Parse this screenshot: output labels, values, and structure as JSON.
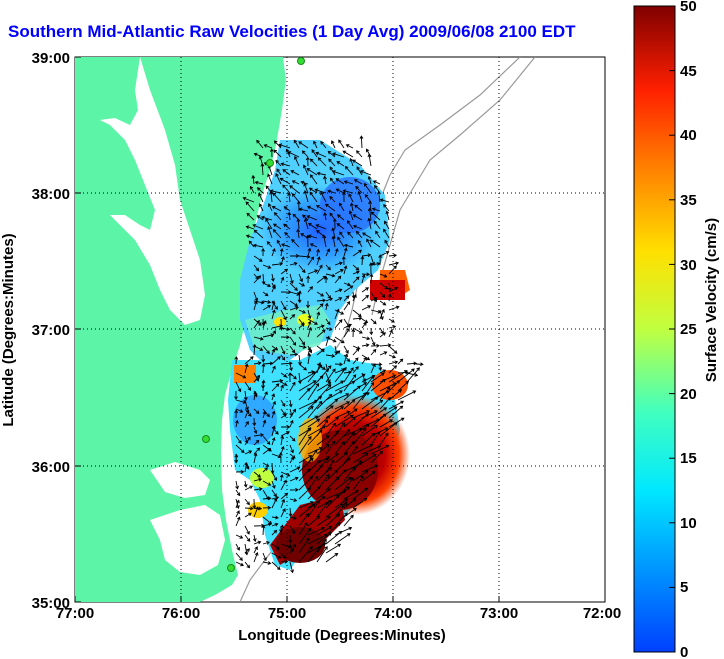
{
  "title": "Southern Mid-Atlantic Raw Velocities (1 Day Avg) 2009/06/08 2100 EDT",
  "x_axis": {
    "label": "Longitude (Degrees:Minutes)",
    "ticks": [
      "77:00",
      "76:00",
      "75:00",
      "74:00",
      "73:00",
      "72:00"
    ]
  },
  "y_axis": {
    "label": "Latitude (Degrees:Minutes)",
    "ticks": [
      "39:00",
      "38:00",
      "37:00",
      "36:00",
      "35:00"
    ]
  },
  "colorbar": {
    "label": "Surface Velocity (cm/s)",
    "ticks": [
      "50",
      "45",
      "40",
      "35",
      "30",
      "25",
      "20",
      "15",
      "10",
      "5",
      "0"
    ],
    "min": 0,
    "max": 50
  },
  "colors": {
    "land": "#5cf5a8",
    "water": "#ffffff",
    "title": "#0000ff",
    "station": "#33dd33"
  }
}
